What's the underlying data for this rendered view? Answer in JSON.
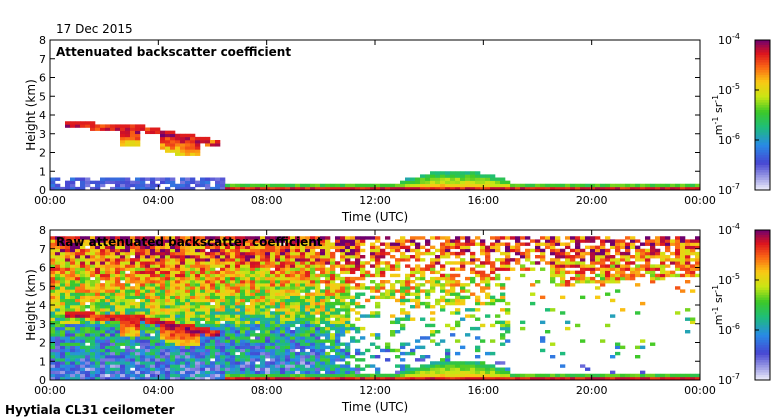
{
  "date": "17 Dec 2015",
  "footer": "Hyytiala CL31 ceilometer",
  "chart_data": [
    {
      "type": "heatmap",
      "title": "Attenuated backscatter coefficient",
      "xlabel": "Time (UTC)",
      "ylabel": "Height (km)",
      "xlim_hours": [
        0,
        24
      ],
      "ylim": [
        0,
        8
      ],
      "xtick_labels": [
        "00:00",
        "04:00",
        "08:00",
        "12:00",
        "16:00",
        "20:00",
        "00:00"
      ],
      "ytick_labels": [
        "0",
        "1",
        "2",
        "3",
        "4",
        "5",
        "6",
        "7",
        "8"
      ],
      "colorbar": {
        "label_base": "m",
        "label_exp1": "-1",
        "label_mid": " sr",
        "label_exp2": "-1",
        "tick_base": "10",
        "tick_exponents": [
          "-4",
          "-5",
          "-6",
          "-7"
        ],
        "log_range": [
          -7,
          -4
        ]
      },
      "features": [
        {
          "name": "upper cloud layer",
          "start_h": 0.5,
          "end_h": 6.2,
          "base_km": 2.5,
          "top_km": 3.7
        },
        {
          "name": "near-surface noise",
          "start_h": 0,
          "end_h": 6.5,
          "base_km": 0,
          "top_km": 0.6
        },
        {
          "name": "low cloud",
          "start_h": 6.5,
          "end_h": 24,
          "base_km": 0,
          "top_km": 0.4
        },
        {
          "name": "low cloud bump",
          "start_h": 13,
          "end_h": 17,
          "base_km": 0,
          "top_km": 1.1
        }
      ]
    },
    {
      "type": "heatmap",
      "title": "Raw attenuated backscatter coefficient",
      "xlabel": "Time (UTC)",
      "ylabel": "Height (km)",
      "xlim_hours": [
        0,
        24
      ],
      "ylim": [
        0,
        8
      ],
      "xtick_labels": [
        "00:00",
        "04:00",
        "08:00",
        "12:00",
        "16:00",
        "20:00",
        "00:00"
      ],
      "ytick_labels": [
        "0",
        "1",
        "2",
        "3",
        "4",
        "5",
        "6",
        "7",
        "8"
      ],
      "colorbar": {
        "label_base": "m",
        "label_exp1": "-1",
        "label_mid": " sr",
        "label_exp2": "-1",
        "tick_base": "10",
        "tick_exponents": [
          "-4",
          "-5",
          "-6",
          "-7"
        ],
        "log_range": [
          -7,
          -4
        ]
      },
      "features": [
        {
          "name": "background noise",
          "start_h": 0,
          "end_h": 24,
          "base_km": 0,
          "top_km": 7.7
        },
        {
          "name": "upper cloud layer",
          "start_h": 0.5,
          "end_h": 6.2,
          "base_km": 2.5,
          "top_km": 3.7
        },
        {
          "name": "low cloud",
          "start_h": 6.5,
          "end_h": 24,
          "base_km": 0,
          "top_km": 0.4
        }
      ]
    }
  ]
}
